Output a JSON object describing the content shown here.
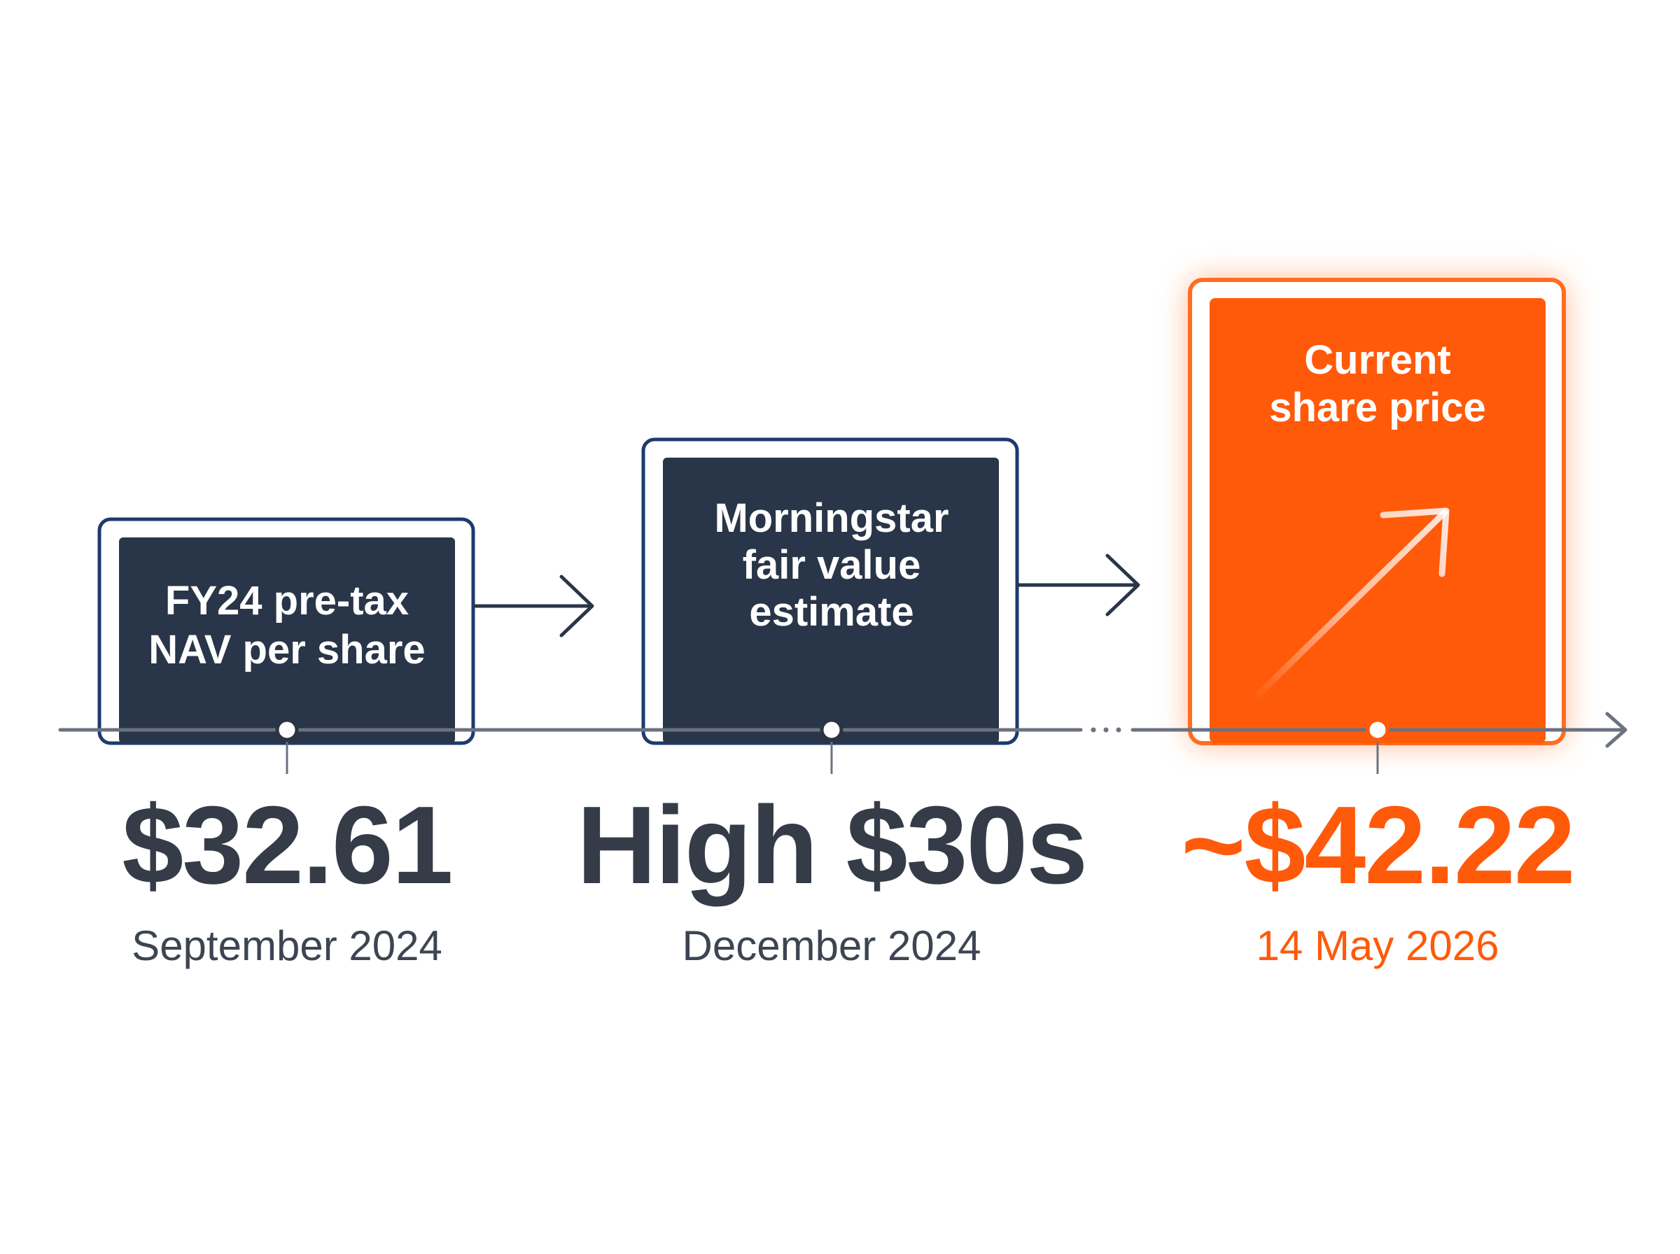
{
  "colors": {
    "navy": "#293548",
    "navy_border": "#1e3a6e",
    "accent": "#ff5a0a",
    "value_dark": "#353c48",
    "date_dark": "#3d4552",
    "axis": "#6b7280"
  },
  "milestones": [
    {
      "label_lines": [
        "FY24 pre-tax",
        "NAV per share"
      ],
      "value": "$32.61",
      "date": "September 2024"
    },
    {
      "label_lines": [
        "Morningstar",
        "fair value",
        "estimate"
      ],
      "value": "High $30s",
      "date": "December 2024"
    },
    {
      "label_lines": [
        "Current",
        "share price"
      ],
      "value": "~$42.22",
      "date": "14 May 2026",
      "icon": "trend-up-arrow-icon"
    }
  ]
}
